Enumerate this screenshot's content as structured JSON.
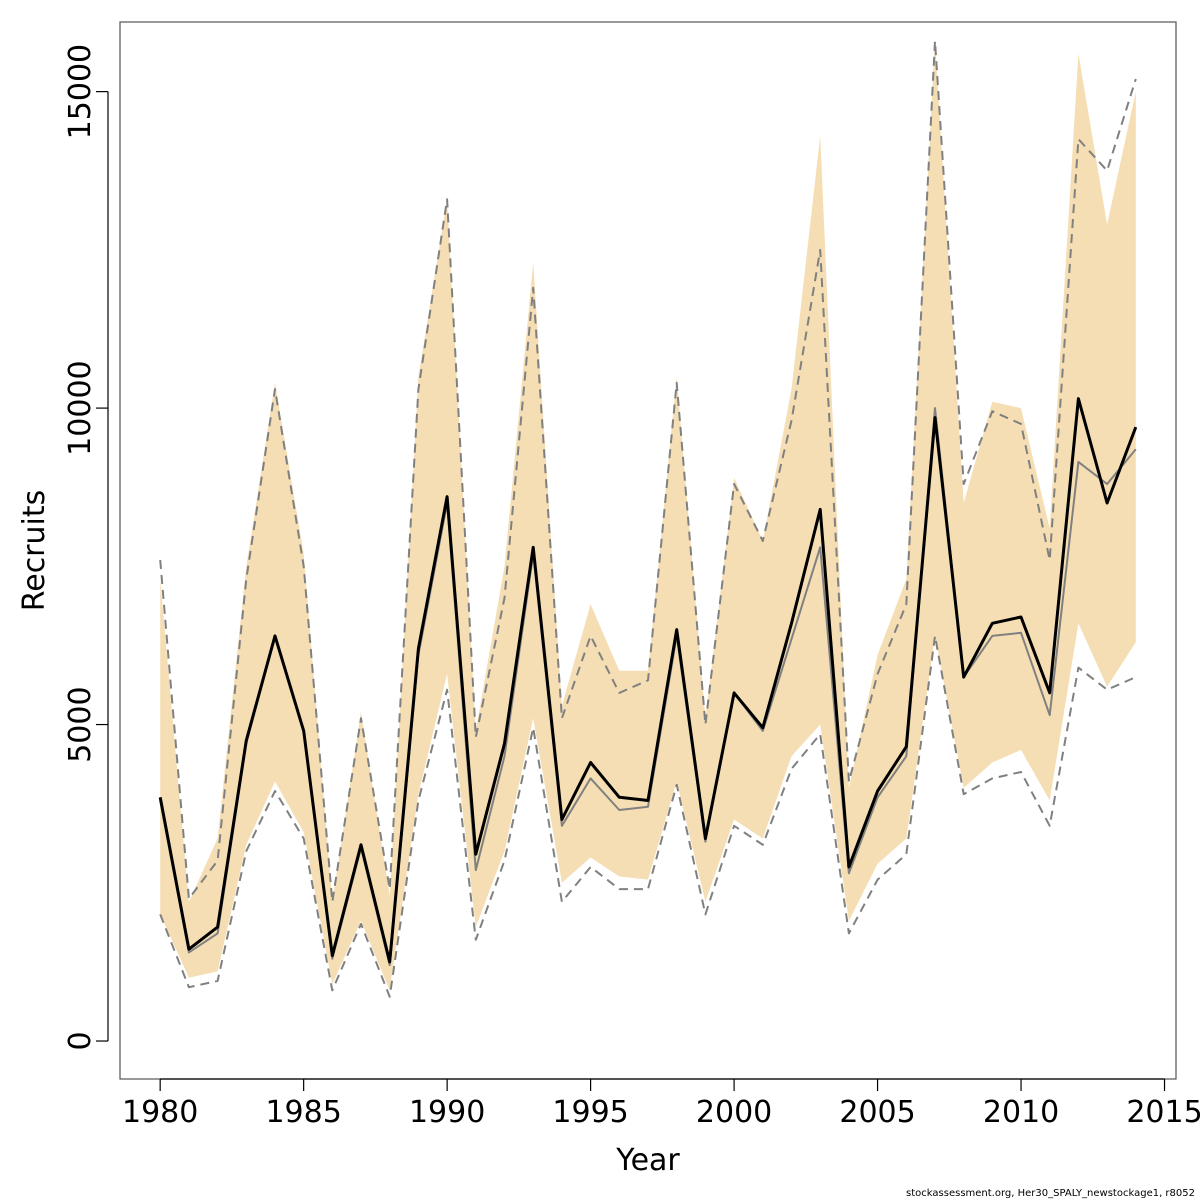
{
  "colors": {
    "band": "#f5deb3",
    "main_line": "#000000",
    "secondary_line": "#808080",
    "dashed_line": "#808080",
    "frame": "#555555"
  },
  "credit": "stockassessment.org, Her30_SPALY_newstockage1, r8052",
  "chart_data": {
    "type": "line",
    "title": "",
    "xlabel": "Year",
    "ylabel": "Recruits",
    "xlim": [
      1978.6,
      2015.4
    ],
    "ylim": [
      -600,
      16100
    ],
    "x_ticks": [
      1980,
      1985,
      1990,
      1995,
      2000,
      2005,
      2010,
      2015
    ],
    "y_ticks": [
      0,
      5000,
      10000,
      15000
    ],
    "grid": false,
    "legend": "none",
    "x": [
      1980,
      1981,
      1982,
      1983,
      1984,
      1985,
      1986,
      1987,
      1988,
      1989,
      1990,
      1991,
      1992,
      1993,
      1994,
      1995,
      1996,
      1997,
      1998,
      1999,
      2000,
      2001,
      2002,
      2003,
      2004,
      2005,
      2006,
      2007,
      2008,
      2009,
      2010,
      2011,
      2012,
      2013,
      2014
    ],
    "series": [
      {
        "role": "band-upper",
        "values": [
          7300,
          2200,
          3200,
          7500,
          10400,
          7700,
          2200,
          5200,
          2300,
          10500,
          13300,
          4900,
          7500,
          12300,
          5300,
          6900,
          5850,
          5850,
          10500,
          5100,
          8900,
          7900,
          10300,
          14300,
          4000,
          6100,
          7300,
          15800,
          8500,
          10100,
          10000,
          8100,
          15600,
          12900,
          15000
        ]
      },
      {
        "role": "band-lower",
        "values": [
          2000,
          1000,
          1100,
          3100,
          4100,
          3300,
          900,
          1900,
          800,
          3900,
          5800,
          1800,
          3000,
          5100,
          2500,
          2900,
          2600,
          2550,
          4100,
          2200,
          3500,
          3200,
          4500,
          5000,
          1900,
          2800,
          3200,
          6400,
          4000,
          4400,
          4600,
          3800,
          6600,
          5600,
          6300
        ]
      },
      {
        "role": "main",
        "values": [
          3850,
          1450,
          1800,
          4750,
          6400,
          4900,
          1350,
          3100,
          1250,
          6200,
          8600,
          2950,
          4700,
          7800,
          3500,
          4400,
          3850,
          3800,
          6500,
          3200,
          5500,
          4950,
          6600,
          8400,
          2750,
          3950,
          4650,
          9850,
          5750,
          6600,
          6700,
          5500,
          10150,
          8500,
          9700
        ]
      },
      {
        "role": "secondary",
        "values": [
          3800,
          1400,
          1700,
          4700,
          6400,
          4900,
          1300,
          3050,
          1200,
          6100,
          8500,
          2700,
          4500,
          7700,
          3400,
          4150,
          3650,
          3700,
          6400,
          3150,
          5500,
          4900,
          6350,
          7800,
          2650,
          3850,
          4500,
          10000,
          5750,
          6400,
          6450,
          5150,
          9150,
          8800,
          9350
        ]
      },
      {
        "role": "dashed-upper",
        "values": [
          7600,
          2250,
          2850,
          7300,
          10300,
          7500,
          2200,
          5100,
          2400,
          10300,
          13300,
          4800,
          7000,
          11900,
          5100,
          6400,
          5500,
          5700,
          10400,
          5000,
          8800,
          7900,
          9800,
          12500,
          4100,
          5800,
          6900,
          15800,
          8800,
          9950,
          9750,
          7600,
          14250,
          13750,
          15200
        ]
      },
      {
        "role": "dashed-lower",
        "values": [
          2000,
          850,
          950,
          3000,
          3950,
          3200,
          800,
          1850,
          700,
          3800,
          5550,
          1600,
          2850,
          4950,
          2200,
          2750,
          2400,
          2400,
          4050,
          2000,
          3400,
          3100,
          4300,
          4850,
          1700,
          2550,
          2950,
          6400,
          3900,
          4150,
          4250,
          3400,
          5900,
          5550,
          5750
        ]
      }
    ]
  }
}
